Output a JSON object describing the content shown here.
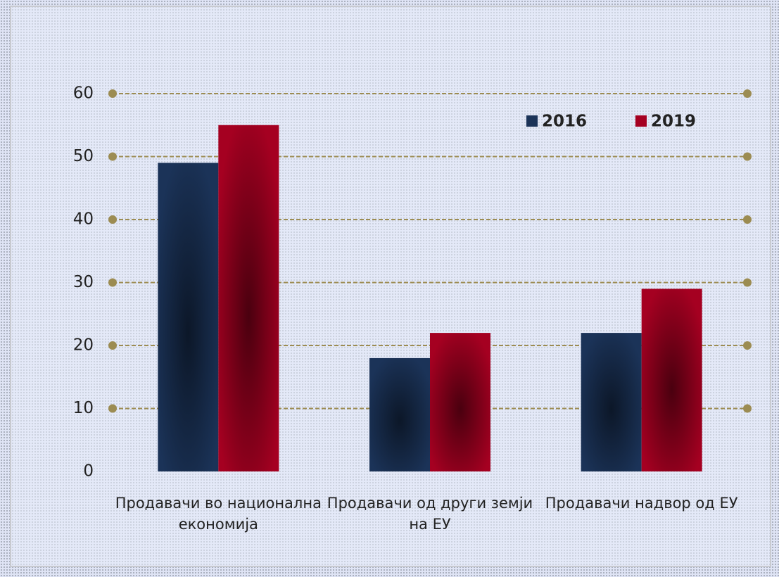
{
  "chart_data": {
    "type": "bar",
    "categories": [
      "Продавачи во национална економија",
      "Продавачи од други земји на ЕУ",
      "Продавачи надвор од ЕУ"
    ],
    "series": [
      {
        "name": "2016",
        "color": "#1b3358",
        "values": [
          49,
          18,
          22
        ]
      },
      {
        "name": "2019",
        "color": "#a50021",
        "values": [
          55,
          22,
          29
        ]
      }
    ],
    "ylim": [
      0,
      60
    ],
    "yticks": [
      0,
      10,
      20,
      30,
      40,
      50,
      60
    ],
    "grid": true,
    "legend": "top-right"
  }
}
